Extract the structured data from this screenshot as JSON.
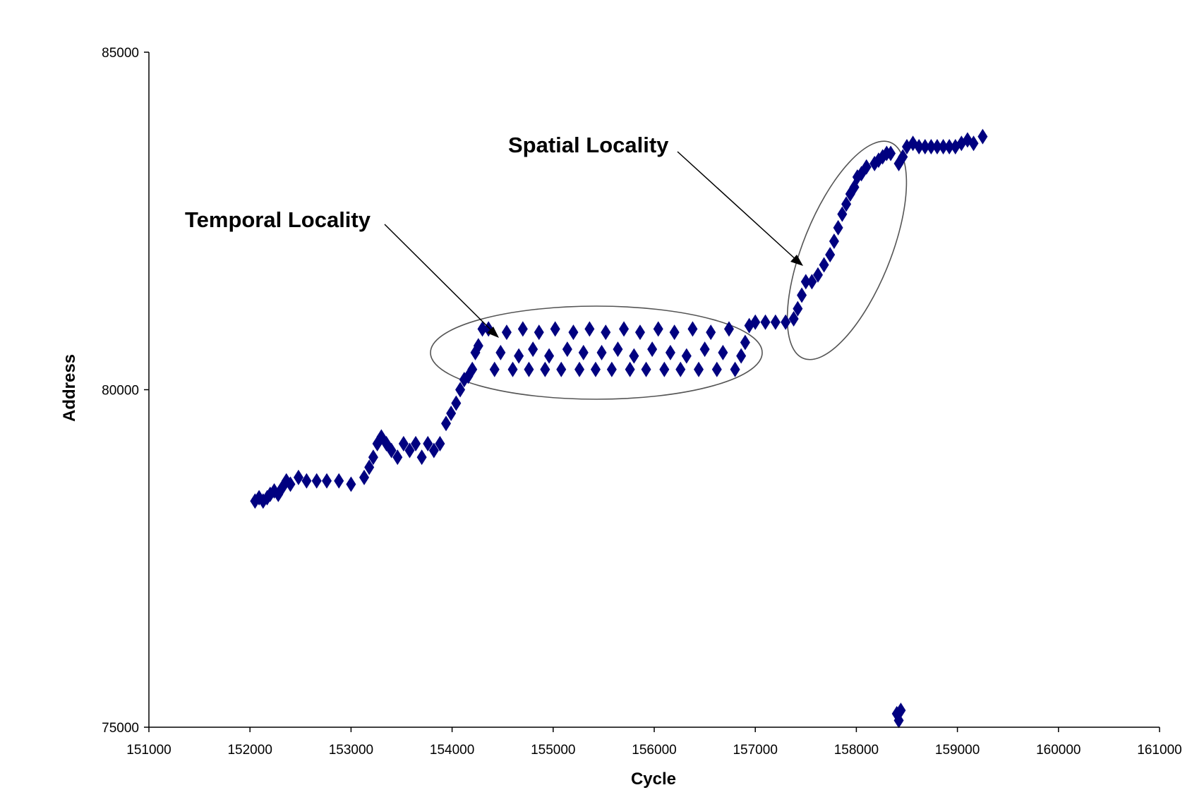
{
  "chart_data": {
    "type": "scatter",
    "title": "",
    "xlabel": "Cycle",
    "ylabel": "Address",
    "xlim": [
      151000,
      161000
    ],
    "ylim": [
      75000,
      85000
    ],
    "xticks": [
      151000,
      152000,
      153000,
      154000,
      155000,
      156000,
      157000,
      158000,
      159000,
      160000,
      161000
    ],
    "yticks": [
      75000,
      80000,
      85000
    ],
    "xtick_labels": [
      "151000",
      "152000",
      "153000",
      "154000",
      "155000",
      "156000",
      "157000",
      "158000",
      "159000",
      "160000",
      "161000"
    ],
    "ytick_labels": [
      "75000",
      "80000",
      "85000"
    ],
    "grid": false,
    "legend": "none",
    "marker": "diamond",
    "color": "#000080",
    "annotations": [
      {
        "text": "Temporal Locality",
        "target": [
          154550,
          80750
        ]
      },
      {
        "text": "Spatial Locality",
        "target": [
          157450,
          81800
        ]
      }
    ],
    "series": [
      {
        "points": [
          [
            152050,
            78350
          ],
          [
            152090,
            78400
          ],
          [
            152130,
            78350
          ],
          [
            152170,
            78400
          ],
          [
            152200,
            78450
          ],
          [
            152240,
            78500
          ],
          [
            152280,
            78450
          ],
          [
            152320,
            78550
          ],
          [
            152360,
            78650
          ],
          [
            152400,
            78600
          ],
          [
            152480,
            78700
          ],
          [
            152560,
            78650
          ],
          [
            152660,
            78650
          ],
          [
            152760,
            78650
          ],
          [
            152880,
            78650
          ],
          [
            153000,
            78600
          ],
          [
            153130,
            78700
          ],
          [
            153180,
            78850
          ],
          [
            153220,
            79000
          ],
          [
            153260,
            79200
          ],
          [
            153300,
            79300
          ],
          [
            153350,
            79200
          ],
          [
            153400,
            79100
          ],
          [
            153460,
            79000
          ],
          [
            153520,
            79200
          ],
          [
            153580,
            79100
          ],
          [
            153640,
            79200
          ],
          [
            153700,
            79000
          ],
          [
            153760,
            79200
          ],
          [
            153820,
            79100
          ],
          [
            153880,
            79200
          ],
          [
            153940,
            79500
          ],
          [
            153990,
            79650
          ],
          [
            154040,
            79800
          ],
          [
            154080,
            80000
          ],
          [
            154120,
            80150
          ],
          [
            154160,
            80200
          ],
          [
            154200,
            80300
          ],
          [
            154230,
            80550
          ],
          [
            154260,
            80650
          ],
          [
            154300,
            80900
          ],
          [
            154360,
            80900
          ],
          [
            154420,
            80300
          ],
          [
            154480,
            80550
          ],
          [
            154540,
            80850
          ],
          [
            154600,
            80300
          ],
          [
            154660,
            80500
          ],
          [
            154700,
            80900
          ],
          [
            154760,
            80300
          ],
          [
            154800,
            80600
          ],
          [
            154860,
            80850
          ],
          [
            154920,
            80300
          ],
          [
            154960,
            80500
          ],
          [
            155020,
            80900
          ],
          [
            155080,
            80300
          ],
          [
            155140,
            80600
          ],
          [
            155200,
            80850
          ],
          [
            155260,
            80300
          ],
          [
            155300,
            80550
          ],
          [
            155360,
            80900
          ],
          [
            155420,
            80300
          ],
          [
            155480,
            80550
          ],
          [
            155520,
            80850
          ],
          [
            155580,
            80300
          ],
          [
            155640,
            80600
          ],
          [
            155700,
            80900
          ],
          [
            155760,
            80300
          ],
          [
            155800,
            80500
          ],
          [
            155860,
            80850
          ],
          [
            155920,
            80300
          ],
          [
            155980,
            80600
          ],
          [
            156040,
            80900
          ],
          [
            156100,
            80300
          ],
          [
            156160,
            80550
          ],
          [
            156200,
            80850
          ],
          [
            156260,
            80300
          ],
          [
            156320,
            80500
          ],
          [
            156380,
            80900
          ],
          [
            156440,
            80300
          ],
          [
            156500,
            80600
          ],
          [
            156560,
            80850
          ],
          [
            156620,
            80300
          ],
          [
            156680,
            80550
          ],
          [
            156740,
            80900
          ],
          [
            156800,
            80300
          ],
          [
            156860,
            80500
          ],
          [
            156900,
            80700
          ],
          [
            156940,
            80950
          ],
          [
            157000,
            81000
          ],
          [
            157100,
            81000
          ],
          [
            157200,
            81000
          ],
          [
            157300,
            81000
          ],
          [
            157380,
            81050
          ],
          [
            157420,
            81200
          ],
          [
            157460,
            81400
          ],
          [
            157500,
            81600
          ],
          [
            157560,
            81600
          ],
          [
            157620,
            81700
          ],
          [
            157680,
            81850
          ],
          [
            157740,
            82000
          ],
          [
            157780,
            82200
          ],
          [
            157820,
            82400
          ],
          [
            157860,
            82600
          ],
          [
            157900,
            82750
          ],
          [
            157940,
            82900
          ],
          [
            157980,
            83000
          ],
          [
            158010,
            83150
          ],
          [
            158050,
            83200
          ],
          [
            158100,
            83300
          ],
          [
            158180,
            83350
          ],
          [
            158220,
            83400
          ],
          [
            158260,
            83450
          ],
          [
            158300,
            83500
          ],
          [
            158340,
            83500
          ],
          [
            158420,
            83350
          ],
          [
            158460,
            83450
          ],
          [
            158500,
            83600
          ],
          [
            158560,
            83650
          ],
          [
            158620,
            83600
          ],
          [
            158680,
            83600
          ],
          [
            158740,
            83600
          ],
          [
            158800,
            83600
          ],
          [
            158860,
            83600
          ],
          [
            158920,
            83600
          ],
          [
            158980,
            83600
          ],
          [
            159040,
            83650
          ],
          [
            159100,
            83700
          ],
          [
            159160,
            83650
          ],
          [
            159250,
            83750
          ],
          [
            158400,
            75200
          ],
          [
            158420,
            75100
          ],
          [
            158440,
            75250
          ]
        ]
      }
    ]
  }
}
